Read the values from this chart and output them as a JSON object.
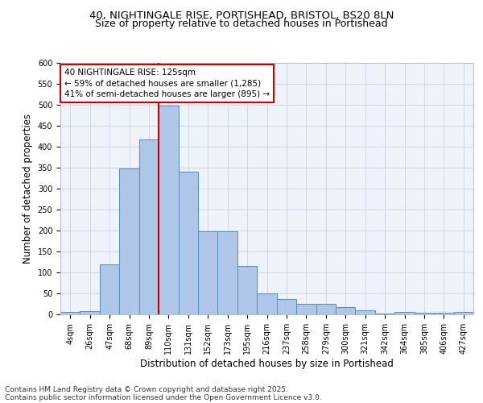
{
  "title_line1": "40, NIGHTINGALE RISE, PORTISHEAD, BRISTOL, BS20 8LN",
  "title_line2": "Size of property relative to detached houses in Portishead",
  "xlabel": "Distribution of detached houses by size in Portishead",
  "ylabel": "Number of detached properties",
  "categories": [
    "4sqm",
    "26sqm",
    "47sqm",
    "68sqm",
    "89sqm",
    "110sqm",
    "131sqm",
    "152sqm",
    "173sqm",
    "195sqm",
    "216sqm",
    "237sqm",
    "258sqm",
    "279sqm",
    "300sqm",
    "321sqm",
    "342sqm",
    "364sqm",
    "385sqm",
    "406sqm",
    "427sqm"
  ],
  "values": [
    5,
    7,
    120,
    348,
    417,
    497,
    340,
    197,
    197,
    115,
    50,
    37,
    25,
    25,
    18,
    10,
    2,
    5,
    3,
    3,
    5
  ],
  "bar_color": "#aec6e8",
  "bar_edge_color": "#5a8abf",
  "vline_x_idx": 5,
  "vline_color": "#cc0000",
  "annotation_line1": "40 NIGHTINGALE RISE: 125sqm",
  "annotation_line2": "← 59% of detached houses are smaller (1,285)",
  "annotation_line3": "41% of semi-detached houses are larger (895) →",
  "annotation_box_color": "#ffffff",
  "annotation_box_edge": "#cc0000",
  "ylim": [
    0,
    600
  ],
  "yticks": [
    0,
    50,
    100,
    150,
    200,
    250,
    300,
    350,
    400,
    450,
    500,
    550,
    600
  ],
  "grid_color": "#d0d8e8",
  "bg_color": "#eef2fa",
  "footnote_line1": "Contains HM Land Registry data © Crown copyright and database right 2025.",
  "footnote_line2": "Contains public sector information licensed under the Open Government Licence v3.0.",
  "title1_fontsize": 9.5,
  "title2_fontsize": 9,
  "axis_label_fontsize": 8.5,
  "tick_fontsize": 7,
  "annotation_fontsize": 7.5,
  "footnote_fontsize": 6.5
}
